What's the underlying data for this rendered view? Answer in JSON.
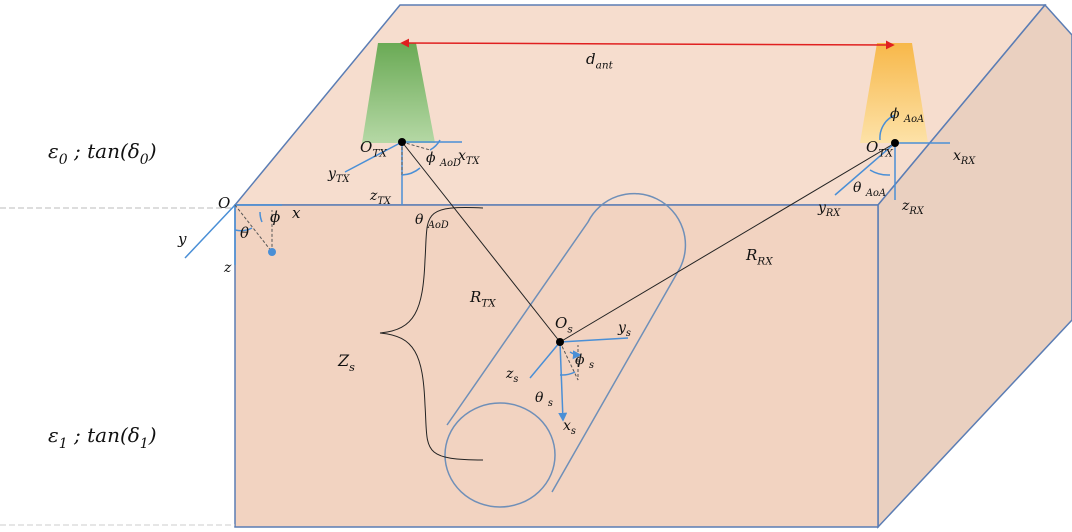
{
  "labels": [
    {
      "parts": [
        "ε",
        "0",
        " ; tan(δ",
        "0",
        ")"
      ]
    },
    {
      "parts": [
        "ε",
        "1",
        " ; tan(δ",
        "1",
        ")"
      ]
    },
    {
      "parts": [
        "d",
        "ant"
      ]
    },
    {
      "parts": [
        "O",
        "TX"
      ]
    },
    {
      "parts": [
        "x",
        "TX"
      ]
    },
    {
      "parts": [
        "ϕ ",
        "AoD"
      ]
    },
    {
      "parts": [
        "y",
        "TX"
      ]
    },
    {
      "parts": [
        "z",
        "TX"
      ]
    },
    {
      "parts": [
        "θ ",
        "AoD"
      ]
    },
    {
      "parts": [
        "O"
      ]
    },
    {
      "parts": [
        "x"
      ]
    },
    {
      "parts": [
        "ϕ"
      ]
    },
    {
      "parts": [
        "y"
      ]
    },
    {
      "parts": [
        "θ"
      ]
    },
    {
      "parts": [
        "z"
      ]
    },
    {
      "parts": [
        "ϕ ",
        "AoA"
      ]
    },
    {
      "parts": [
        "O",
        "TX"
      ]
    },
    {
      "parts": [
        "x",
        "RX"
      ]
    },
    {
      "parts": [
        "θ ",
        "AoA"
      ]
    },
    {
      "parts": [
        "y",
        "RX"
      ]
    },
    {
      "parts": [
        "z",
        "RX"
      ]
    },
    {
      "parts": [
        "R",
        "TX"
      ]
    },
    {
      "parts": [
        "R",
        "RX"
      ]
    },
    {
      "parts": [
        "Z",
        "s"
      ]
    },
    {
      "parts": [
        "O",
        "s"
      ]
    },
    {
      "parts": [
        "y",
        "s"
      ]
    },
    {
      "parts": [
        "ϕ ",
        "s"
      ]
    },
    {
      "parts": [
        "z",
        "s"
      ]
    },
    {
      "parts": [
        "θ ",
        "s"
      ]
    },
    {
      "parts": [
        "x",
        "s"
      ]
    }
  ]
}
